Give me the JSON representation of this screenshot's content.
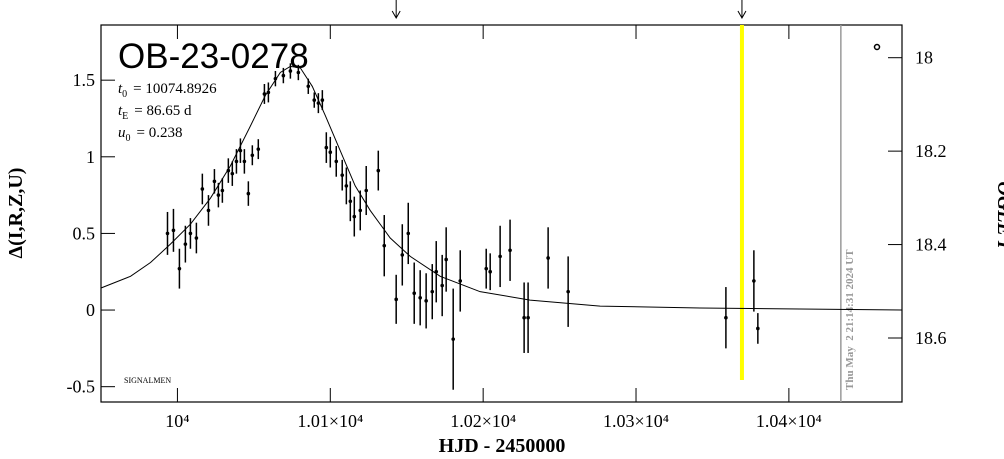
{
  "chart_data": {
    "type": "scatter",
    "title": "OB-23-0278",
    "params": [
      {
        "symbol": "t",
        "sub": "0",
        "text": "= 10074.8926"
      },
      {
        "symbol": "t",
        "sub": "E",
        "text": "= 86.65 d"
      },
      {
        "symbol": "u",
        "sub": "0",
        "text": "= 0.238"
      }
    ],
    "note": "SIGNALMEN",
    "x_label": "HJD - 2450000",
    "y_label": "Δ(I,R,Z,U)",
    "y2_label": "OGLE I",
    "xlim": [
      9950,
      10474
    ],
    "xticks": [
      {
        "value": 10000,
        "label": "10⁴"
      },
      {
        "value": 10100,
        "label": "1.01×10⁴"
      },
      {
        "value": 10200,
        "label": "1.02×10⁴"
      },
      {
        "value": 10300,
        "label": "1.03×10⁴"
      },
      {
        "value": 10400,
        "label": "1.04×10⁴"
      }
    ],
    "ylim": [
      -0.6,
      1.86
    ],
    "yticks": [
      -0.5,
      0,
      0.5,
      1,
      1.5
    ],
    "y2lim": [
      17.93,
      18.737
    ],
    "y2ticks": [
      18,
      18.2,
      18.4,
      18.6
    ],
    "series": [
      {
        "color": "#000000",
        "x": [
          9993.5,
          9997.4,
          10001.3,
          10005.2,
          10008.5,
          10012.4,
          10016.3,
          10020.3,
          10024.2,
          10026.8,
          10029.4,
          10033.3,
          10035.9,
          10038.6,
          10041.2,
          10043.8,
          10046.4,
          10049.0,
          10052.9,
          10056.9,
          10059.5,
          10064.1,
          10069.3,
          10073.9,
          10079.1,
          10085.6,
          10089.5,
          10092.2,
          10094.8,
          10097.4,
          10100.0,
          10103.9,
          10107.8,
          10110.5,
          10113.1,
          10115.7,
          10119.6,
          10123.5,
          10131.4,
          10135.3,
          10143.1,
          10147.1,
          10151.0,
          10154.9,
          10158.8,
          10162.7,
          10166.7,
          10169.3,
          10173.2,
          10175.8,
          10180.4,
          10185.0,
          10202.0,
          10204.6,
          10211.1,
          10217.6,
          10226.8,
          10229.4,
          10242.5,
          10255.6,
          10358.8,
          10377.1,
          10379.7
        ],
        "values": [
          0.5,
          0.52,
          0.27,
          0.43,
          0.5,
          0.47,
          0.79,
          0.65,
          0.84,
          0.75,
          0.78,
          0.91,
          0.89,
          0.97,
          1.04,
          0.97,
          0.76,
          1.01,
          1.05,
          1.41,
          1.42,
          1.51,
          1.53,
          1.56,
          1.55,
          1.46,
          1.37,
          1.35,
          1.37,
          1.06,
          1.03,
          0.97,
          0.88,
          0.81,
          0.71,
          0.61,
          0.65,
          0.78,
          0.91,
          0.42,
          0.07,
          0.36,
          0.5,
          0.11,
          0.08,
          0.06,
          0.12,
          0.25,
          0.16,
          0.33,
          -0.19,
          0.19,
          0.27,
          0.25,
          0.35,
          0.39,
          -0.05,
          -0.05,
          0.34,
          0.12,
          -0.05,
          0.19,
          -0.12
        ],
        "errors": [
          0.14,
          0.14,
          0.13,
          0.12,
          0.1,
          0.1,
          0.1,
          0.1,
          0.08,
          0.08,
          0.08,
          0.08,
          0.08,
          0.08,
          0.08,
          0.08,
          0.08,
          0.065,
          0.065,
          0.065,
          0.065,
          0.05,
          0.05,
          0.05,
          0.05,
          0.05,
          0.05,
          0.065,
          0.065,
          0.1,
          0.1,
          0.1,
          0.1,
          0.12,
          0.13,
          0.13,
          0.13,
          0.16,
          0.13,
          0.2,
          0.16,
          0.2,
          0.2,
          0.2,
          0.18,
          0.18,
          0.18,
          0.2,
          0.2,
          0.21,
          0.33,
          0.2,
          0.13,
          0.12,
          0.2,
          0.2,
          0.23,
          0.23,
          0.2,
          0.23,
          0.2,
          0.2,
          0.1
        ]
      },
      {
        "color": "#000000",
        "style": "line",
        "x": [
          9950,
          9969.3,
          9982.4,
          9995.4,
          10008.5,
          10021.6,
          10034.6,
          10047.7,
          10057.5,
          10067.3,
          10073.9,
          10080.4,
          10088.2,
          10096.7,
          10106.5,
          10116.3,
          10126.1,
          10139.2,
          10152.3,
          10171.9,
          10198.0,
          10230.7,
          10276.5,
          10341.8,
          10407.2,
          10473.9
        ],
        "values": [
          0.144,
          0.22,
          0.31,
          0.43,
          0.56,
          0.73,
          0.94,
          1.2,
          1.4,
          1.55,
          1.59,
          1.58,
          1.46,
          1.27,
          1.04,
          0.81,
          0.65,
          0.47,
          0.35,
          0.22,
          0.12,
          0.065,
          0.026,
          0.013,
          0.007,
          0.0
        ]
      }
    ],
    "vlines": [
      {
        "x": 10369.3,
        "color": "#ffff00"
      },
      {
        "x": 10434.0,
        "color": "#999999",
        "label": "Thu May  2 21:14:31 2024 UT"
      }
    ],
    "arrows": [
      10143.1,
      10369.3
    ]
  }
}
